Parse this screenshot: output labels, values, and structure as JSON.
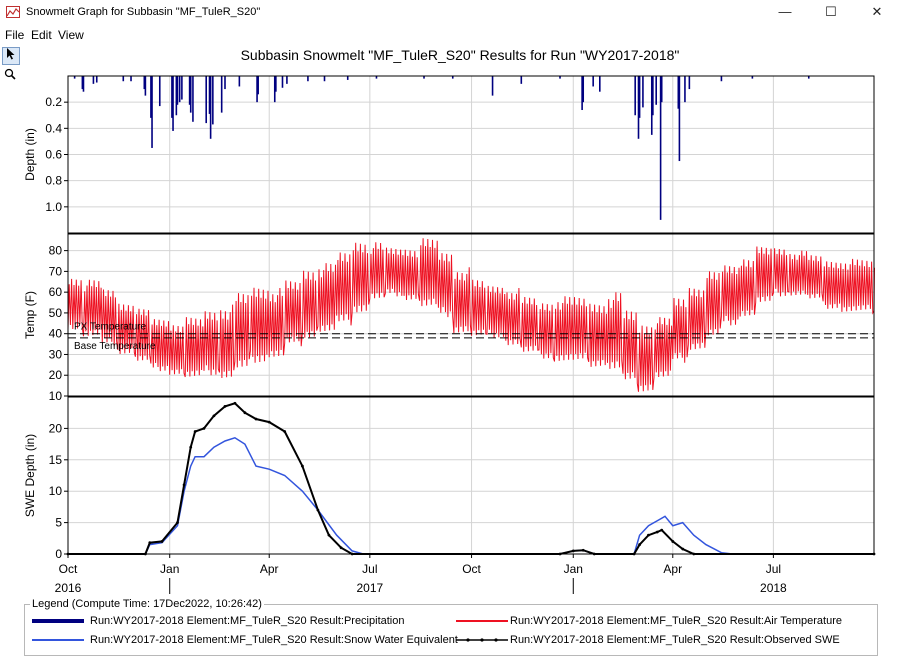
{
  "window": {
    "title": "Snowmelt Graph for Subbasin \"MF_TuleR_S20\"",
    "minimize": "—",
    "maximize": "☐",
    "close": "✕"
  },
  "menu": {
    "file": "File",
    "edit": "Edit",
    "view": "View"
  },
  "toolbar": {
    "pointer_icon": "pointer-icon",
    "zoom_icon": "zoom-icon"
  },
  "chart_data": {
    "type": "multi-panel time series",
    "title": "Subbasin Snowmelt \"MF_TuleR_S20\" Results for Run \"WY2017-2018\"",
    "x_range": [
      "2016-10-01",
      "2018-09-30"
    ],
    "x_ticks": [
      "Oct",
      "Jan",
      "Apr",
      "Jul",
      "Oct",
      "Jan",
      "Apr",
      "Jul"
    ],
    "x_year_labels": [
      "2016",
      "2017",
      "2018"
    ],
    "colors": {
      "precipitation": "#000080",
      "air_temperature": "#ee1122",
      "swe": "#3355dd",
      "observed_swe": "#000000"
    },
    "panels": [
      {
        "name": "precipitation",
        "ylabel": "Depth (in)",
        "yticks": [
          "0.2",
          "0.4",
          "0.6",
          "0.8",
          "1.0"
        ],
        "ylim": [
          0,
          1.2
        ],
        "inverted": true,
        "type": "bar",
        "events": [
          {
            "x": "2016-10-07",
            "y": 0.02
          },
          {
            "x": "2016-10-14",
            "y": 0.1
          },
          {
            "x": "2016-10-15",
            "y": 0.12
          },
          {
            "x": "2016-10-24",
            "y": 0.06
          },
          {
            "x": "2016-10-27",
            "y": 0.05
          },
          {
            "x": "2016-11-20",
            "y": 0.04
          },
          {
            "x": "2016-11-27",
            "y": 0.04
          },
          {
            "x": "2016-12-09",
            "y": 0.1
          },
          {
            "x": "2016-12-10",
            "y": 0.15
          },
          {
            "x": "2016-12-15",
            "y": 0.32
          },
          {
            "x": "2016-12-16",
            "y": 0.55
          },
          {
            "x": "2016-12-23",
            "y": 0.23
          },
          {
            "x": "2017-01-03",
            "y": 0.32
          },
          {
            "x": "2017-01-04",
            "y": 0.42
          },
          {
            "x": "2017-01-07",
            "y": 0.3
          },
          {
            "x": "2017-01-08",
            "y": 0.22
          },
          {
            "x": "2017-01-10",
            "y": 0.2
          },
          {
            "x": "2017-01-12",
            "y": 0.18
          },
          {
            "x": "2017-01-19",
            "y": 0.22
          },
          {
            "x": "2017-01-20",
            "y": 0.28
          },
          {
            "x": "2017-01-22",
            "y": 0.35
          },
          {
            "x": "2017-02-03",
            "y": 0.36
          },
          {
            "x": "2017-02-06",
            "y": 0.29
          },
          {
            "x": "2017-02-07",
            "y": 0.48
          },
          {
            "x": "2017-02-09",
            "y": 0.37
          },
          {
            "x": "2017-02-17",
            "y": 0.28
          },
          {
            "x": "2017-02-20",
            "y": 0.1
          },
          {
            "x": "2017-03-05",
            "y": 0.08
          },
          {
            "x": "2017-03-21",
            "y": 0.2
          },
          {
            "x": "2017-03-22",
            "y": 0.14
          },
          {
            "x": "2017-04-06",
            "y": 0.2
          },
          {
            "x": "2017-04-07",
            "y": 0.12
          },
          {
            "x": "2017-04-13",
            "y": 0.09
          },
          {
            "x": "2017-04-17",
            "y": 0.06
          },
          {
            "x": "2017-05-06",
            "y": 0.04
          },
          {
            "x": "2017-05-21",
            "y": 0.04
          },
          {
            "x": "2017-06-11",
            "y": 0.03
          },
          {
            "x": "2017-07-07",
            "y": 0.02
          },
          {
            "x": "2017-08-19",
            "y": 0.02
          },
          {
            "x": "2017-09-14",
            "y": 0.02
          },
          {
            "x": "2017-10-20",
            "y": 0.15
          },
          {
            "x": "2017-11-15",
            "y": 0.06
          },
          {
            "x": "2017-12-20",
            "y": 0.02
          },
          {
            "x": "2018-01-09",
            "y": 0.26
          },
          {
            "x": "2018-01-10",
            "y": 0.2
          },
          {
            "x": "2018-01-19",
            "y": 0.08
          },
          {
            "x": "2018-01-25",
            "y": 0.12
          },
          {
            "x": "2018-02-26",
            "y": 0.3
          },
          {
            "x": "2018-03-01",
            "y": 0.48
          },
          {
            "x": "2018-03-02",
            "y": 0.32
          },
          {
            "x": "2018-03-05",
            "y": 0.24
          },
          {
            "x": "2018-03-13",
            "y": 0.45
          },
          {
            "x": "2018-03-14",
            "y": 0.3
          },
          {
            "x": "2018-03-17",
            "y": 0.22
          },
          {
            "x": "2018-03-21",
            "y": 1.1
          },
          {
            "x": "2018-03-22",
            "y": 0.2
          },
          {
            "x": "2018-04-06",
            "y": 0.25
          },
          {
            "x": "2018-04-07",
            "y": 0.65
          },
          {
            "x": "2018-04-12",
            "y": 0.2
          },
          {
            "x": "2018-04-16",
            "y": 0.1
          },
          {
            "x": "2018-05-15",
            "y": 0.04
          },
          {
            "x": "2018-06-12",
            "y": 0.02
          },
          {
            "x": "2018-08-02",
            "y": 0.02
          }
        ]
      },
      {
        "name": "temperature",
        "ylabel": "Temp (F)",
        "yticks": [
          "10",
          "20",
          "30",
          "40",
          "50",
          "60",
          "70",
          "80"
        ],
        "ylim": [
          10,
          88
        ],
        "type": "line",
        "reference_lines": [
          {
            "label": "PX Temperature",
            "value": 40
          },
          {
            "label": "Base Temperature",
            "value": 38
          }
        ],
        "air_temperature_weekly": [
          {
            "x": "2016-10-01",
            "min": 42,
            "max": 68
          },
          {
            "x": "2016-10-15",
            "min": 38,
            "max": 66
          },
          {
            "x": "2016-11-01",
            "min": 34,
            "max": 62
          },
          {
            "x": "2016-11-15",
            "min": 30,
            "max": 56
          },
          {
            "x": "2016-12-01",
            "min": 26,
            "max": 52
          },
          {
            "x": "2016-12-15",
            "min": 22,
            "max": 48
          },
          {
            "x": "2017-01-01",
            "min": 20,
            "max": 46
          },
          {
            "x": "2017-01-15",
            "min": 18,
            "max": 48
          },
          {
            "x": "2017-02-01",
            "min": 20,
            "max": 52
          },
          {
            "x": "2017-02-15",
            "min": 18,
            "max": 54
          },
          {
            "x": "2017-03-01",
            "min": 22,
            "max": 60
          },
          {
            "x": "2017-03-15",
            "min": 26,
            "max": 64
          },
          {
            "x": "2017-04-01",
            "min": 28,
            "max": 62
          },
          {
            "x": "2017-04-15",
            "min": 34,
            "max": 66
          },
          {
            "x": "2017-05-01",
            "min": 38,
            "max": 72
          },
          {
            "x": "2017-05-15",
            "min": 40,
            "max": 74
          },
          {
            "x": "2017-06-01",
            "min": 44,
            "max": 80
          },
          {
            "x": "2017-06-15",
            "min": 50,
            "max": 86
          },
          {
            "x": "2017-07-01",
            "min": 56,
            "max": 84
          },
          {
            "x": "2017-07-15",
            "min": 58,
            "max": 82
          },
          {
            "x": "2017-08-01",
            "min": 56,
            "max": 82
          },
          {
            "x": "2017-08-15",
            "min": 52,
            "max": 86
          },
          {
            "x": "2017-09-01",
            "min": 48,
            "max": 80
          },
          {
            "x": "2017-09-15",
            "min": 40,
            "max": 72
          },
          {
            "x": "2017-10-01",
            "min": 38,
            "max": 66
          },
          {
            "x": "2017-10-15",
            "min": 38,
            "max": 64
          },
          {
            "x": "2017-11-01",
            "min": 34,
            "max": 62
          },
          {
            "x": "2017-11-15",
            "min": 30,
            "max": 58
          },
          {
            "x": "2017-12-01",
            "min": 28,
            "max": 56
          },
          {
            "x": "2017-12-15",
            "min": 26,
            "max": 58
          },
          {
            "x": "2018-01-01",
            "min": 26,
            "max": 58
          },
          {
            "x": "2018-01-15",
            "min": 24,
            "max": 56
          },
          {
            "x": "2018-02-01",
            "min": 22,
            "max": 60
          },
          {
            "x": "2018-02-15",
            "min": 16,
            "max": 52
          },
          {
            "x": "2018-03-01",
            "min": 12,
            "max": 46
          },
          {
            "x": "2018-03-15",
            "min": 18,
            "max": 48
          },
          {
            "x": "2018-04-01",
            "min": 26,
            "max": 58
          },
          {
            "x": "2018-04-15",
            "min": 32,
            "max": 64
          },
          {
            "x": "2018-05-01",
            "min": 38,
            "max": 70
          },
          {
            "x": "2018-05-15",
            "min": 44,
            "max": 74
          },
          {
            "x": "2018-06-01",
            "min": 48,
            "max": 78
          },
          {
            "x": "2018-06-15",
            "min": 54,
            "max": 82
          },
          {
            "x": "2018-07-01",
            "min": 58,
            "max": 82
          },
          {
            "x": "2018-07-15",
            "min": 58,
            "max": 80
          },
          {
            "x": "2018-08-01",
            "min": 56,
            "max": 78
          },
          {
            "x": "2018-08-15",
            "min": 52,
            "max": 76
          },
          {
            "x": "2018-09-01",
            "min": 50,
            "max": 76
          },
          {
            "x": "2018-09-30",
            "min": 50,
            "max": 72
          }
        ]
      },
      {
        "name": "swe",
        "ylabel": "SWE Depth (in)",
        "yticks": [
          "0",
          "5",
          "10",
          "15",
          "20"
        ],
        "ylim": [
          0,
          25
        ],
        "type": "line",
        "series": [
          {
            "name": "Snow Water Equivalent",
            "values": [
              {
                "x": "2016-10-01",
                "y": 0
              },
              {
                "x": "2016-12-10",
                "y": 0
              },
              {
                "x": "2016-12-14",
                "y": 1.5
              },
              {
                "x": "2016-12-25",
                "y": 1.8
              },
              {
                "x": "2017-01-08",
                "y": 4.5
              },
              {
                "x": "2017-01-14",
                "y": 10
              },
              {
                "x": "2017-01-20",
                "y": 14
              },
              {
                "x": "2017-01-24",
                "y": 15.5
              },
              {
                "x": "2017-02-01",
                "y": 15.5
              },
              {
                "x": "2017-02-10",
                "y": 17
              },
              {
                "x": "2017-02-20",
                "y": 18
              },
              {
                "x": "2017-03-01",
                "y": 18.5
              },
              {
                "x": "2017-03-10",
                "y": 17.5
              },
              {
                "x": "2017-03-20",
                "y": 14
              },
              {
                "x": "2017-04-01",
                "y": 13.5
              },
              {
                "x": "2017-04-15",
                "y": 12.5
              },
              {
                "x": "2017-05-01",
                "y": 10
              },
              {
                "x": "2017-05-15",
                "y": 7
              },
              {
                "x": "2017-06-01",
                "y": 3
              },
              {
                "x": "2017-06-15",
                "y": 0.5
              },
              {
                "x": "2017-06-25",
                "y": 0
              },
              {
                "x": "2017-12-20",
                "y": 0
              },
              {
                "x": "2018-01-01",
                "y": 0.5
              },
              {
                "x": "2018-01-10",
                "y": 0.6
              },
              {
                "x": "2018-01-20",
                "y": 0
              },
              {
                "x": "2018-02-25",
                "y": 0
              },
              {
                "x": "2018-03-02",
                "y": 3
              },
              {
                "x": "2018-03-10",
                "y": 4.5
              },
              {
                "x": "2018-03-20",
                "y": 5.5
              },
              {
                "x": "2018-03-25",
                "y": 6
              },
              {
                "x": "2018-04-01",
                "y": 4.5
              },
              {
                "x": "2018-04-10",
                "y": 5
              },
              {
                "x": "2018-04-20",
                "y": 3
              },
              {
                "x": "2018-05-01",
                "y": 1.5
              },
              {
                "x": "2018-05-15",
                "y": 0.2
              },
              {
                "x": "2018-05-25",
                "y": 0
              },
              {
                "x": "2018-09-30",
                "y": 0
              }
            ]
          },
          {
            "name": "Observed SWE",
            "values": [
              {
                "x": "2016-10-01",
                "y": 0
              },
              {
                "x": "2016-12-10",
                "y": 0
              },
              {
                "x": "2016-12-14",
                "y": 1.8
              },
              {
                "x": "2016-12-25",
                "y": 2
              },
              {
                "x": "2017-01-08",
                "y": 5
              },
              {
                "x": "2017-01-14",
                "y": 11
              },
              {
                "x": "2017-01-20",
                "y": 17
              },
              {
                "x": "2017-01-24",
                "y": 19.5
              },
              {
                "x": "2017-02-01",
                "y": 20
              },
              {
                "x": "2017-02-10",
                "y": 22
              },
              {
                "x": "2017-02-20",
                "y": 23.5
              },
              {
                "x": "2017-03-01",
                "y": 24
              },
              {
                "x": "2017-03-10",
                "y": 22.5
              },
              {
                "x": "2017-03-20",
                "y": 21.5
              },
              {
                "x": "2017-04-01",
                "y": 21
              },
              {
                "x": "2017-04-15",
                "y": 19.5
              },
              {
                "x": "2017-05-01",
                "y": 14
              },
              {
                "x": "2017-05-15",
                "y": 7
              },
              {
                "x": "2017-05-25",
                "y": 3
              },
              {
                "x": "2017-06-05",
                "y": 1
              },
              {
                "x": "2017-06-15",
                "y": 0
              },
              {
                "x": "2017-12-20",
                "y": 0
              },
              {
                "x": "2018-01-01",
                "y": 0.5
              },
              {
                "x": "2018-01-10",
                "y": 0.6
              },
              {
                "x": "2018-01-20",
                "y": 0
              },
              {
                "x": "2018-02-25",
                "y": 0
              },
              {
                "x": "2018-03-02",
                "y": 1.5
              },
              {
                "x": "2018-03-10",
                "y": 3
              },
              {
                "x": "2018-03-18",
                "y": 3.5
              },
              {
                "x": "2018-03-22",
                "y": 3.8
              },
              {
                "x": "2018-04-01",
                "y": 2
              },
              {
                "x": "2018-04-10",
                "y": 0.8
              },
              {
                "x": "2018-04-20",
                "y": 0
              },
              {
                "x": "2018-09-30",
                "y": 0
              }
            ]
          }
        ]
      }
    ]
  },
  "legend": {
    "caption": "Legend (Compute Time: 17Dec2022, 10:26:42)",
    "entries": [
      {
        "label": "Run:WY2017-2018 Element:MF_TuleR_S20 Result:Precipitation",
        "color": "#000080"
      },
      {
        "label": "Run:WY2017-2018 Element:MF_TuleR_S20 Result:Air Temperature",
        "color": "#ee1122"
      },
      {
        "label": "Run:WY2017-2018 Element:MF_TuleR_S20 Result:Snow Water Equivalent",
        "color": "#3355dd"
      },
      {
        "label": "Run:WY2017-2018 Element:MF_TuleR_S20 Result:Observed SWE",
        "color": "#000000"
      }
    ]
  }
}
